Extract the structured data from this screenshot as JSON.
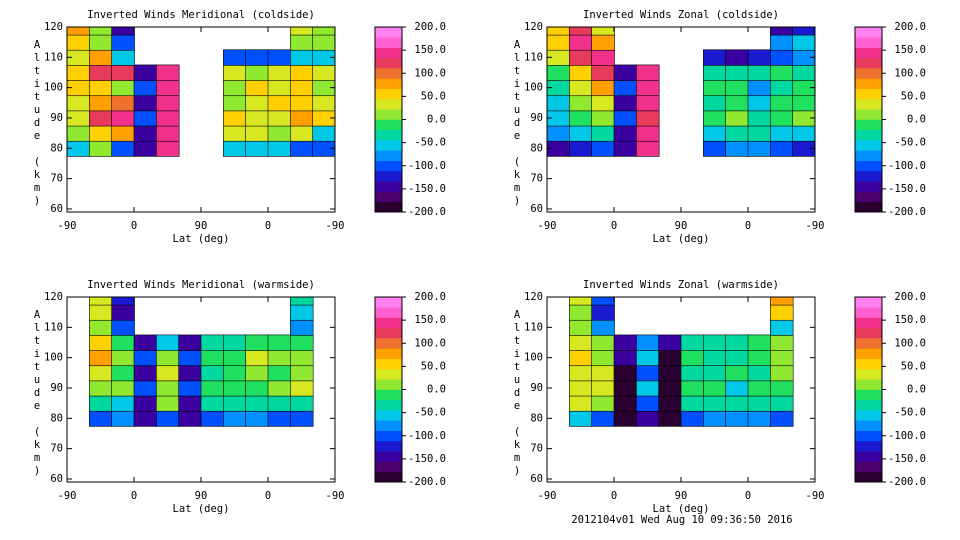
{
  "chart_data": [
    {
      "type": "heatmap",
      "title": "Inverted Winds Meridional (coldside)",
      "xlabel": "Lat (deg)",
      "ylabel": "Altitude (km)",
      "x": [
        15,
        45,
        75,
        105,
        135,
        165,
        195,
        225,
        255,
        285,
        315,
        345
      ],
      "y": [
        80,
        85,
        90,
        95,
        100,
        105,
        110,
        115,
        120
      ],
      "z": [
        [
          -50,
          0,
          -100,
          -150,
          150,
          null,
          null,
          -50,
          -50,
          -50,
          -100,
          -100
        ],
        [
          20,
          50,
          80,
          -150,
          150,
          null,
          null,
          30,
          40,
          20,
          30,
          -50
        ],
        [
          30,
          120,
          150,
          -100,
          150,
          null,
          null,
          50,
          30,
          40,
          80,
          50
        ],
        [
          40,
          80,
          100,
          -150,
          150,
          null,
          null,
          20,
          40,
          60,
          60,
          40
        ],
        [
          50,
          60,
          20,
          -100,
          150,
          null,
          null,
          10,
          50,
          40,
          50,
          20
        ],
        [
          60,
          130,
          120,
          -150,
          150,
          null,
          null,
          30,
          20,
          40,
          60,
          30
        ],
        [
          40,
          80,
          -50,
          null,
          null,
          null,
          null,
          -100,
          -100,
          -100,
          -50,
          -50
        ],
        [
          60,
          20,
          -100,
          null,
          null,
          null,
          null,
          null,
          null,
          null,
          20,
          0
        ],
        [
          80,
          0,
          -150,
          null,
          null,
          null,
          null,
          null,
          null,
          null,
          30,
          20
        ]
      ],
      "xlim": [
        0,
        360
      ],
      "ylim": [
        59,
        120
      ],
      "xticks": [
        {
          "value": 0,
          "label": "-90"
        },
        {
          "value": 90,
          "label": "0"
        },
        {
          "value": 180,
          "label": "90"
        },
        {
          "value": 270,
          "label": "0"
        },
        {
          "value": 360,
          "label": "-90"
        }
      ],
      "yticks": [
        60,
        70,
        80,
        90,
        100,
        110,
        120
      ],
      "colorbar": {
        "clim": [
          -200,
          200
        ],
        "ticks": [
          {
            "value": 200,
            "label": "200.0"
          },
          {
            "value": 150,
            "label": "150.0"
          },
          {
            "value": 100,
            "label": "100.0"
          },
          {
            "value": 50,
            "label": "50.0"
          },
          {
            "value": 0,
            "label": "0.0"
          },
          {
            "value": -50,
            "label": "-50.0"
          },
          {
            "value": -100,
            "label": "-100.0"
          },
          {
            "value": -150,
            "label": "-150.0"
          },
          {
            "value": -200,
            "label": "-200.0"
          }
        ],
        "colors": [
          "#2a0030",
          "#4b006e",
          "#3a00a0",
          "#1a1ad0",
          "#0050ff",
          "#0090ff",
          "#00c8e6",
          "#00d8a0",
          "#20e060",
          "#90e830",
          "#d8e820",
          "#ffd000",
          "#ffa000",
          "#f07030",
          "#e83a5a",
          "#f0308a",
          "#ff60d0",
          "#ff80f0"
        ]
      }
    },
    {
      "type": "heatmap",
      "title": "Inverted Winds Zonal (coldside)",
      "xlabel": "Lat (deg)",
      "ylabel": "Altitude (km)",
      "x": [
        15,
        45,
        75,
        105,
        135,
        165,
        195,
        225,
        255,
        285,
        315,
        345
      ],
      "y": [
        80,
        85,
        90,
        95,
        100,
        105,
        110,
        115,
        120
      ],
      "z": [
        [
          -150,
          -120,
          -100,
          -150,
          150,
          null,
          null,
          -100,
          -80,
          -80,
          -100,
          -120
        ],
        [
          -80,
          -60,
          -30,
          -150,
          150,
          null,
          null,
          -50,
          -30,
          -40,
          -60,
          -50
        ],
        [
          -50,
          -20,
          20,
          -100,
          120,
          null,
          null,
          -20,
          20,
          -40,
          -20,
          20
        ],
        [
          -60,
          0,
          40,
          -150,
          150,
          null,
          null,
          -30,
          -10,
          -60,
          -20,
          -10
        ],
        [
          -40,
          30,
          80,
          -100,
          150,
          null,
          null,
          -20,
          -10,
          -80,
          -30,
          -20
        ],
        [
          -20,
          60,
          130,
          -150,
          150,
          null,
          null,
          -40,
          -30,
          -40,
          -20,
          -30
        ],
        [
          30,
          120,
          150,
          null,
          null,
          null,
          null,
          -120,
          -150,
          -120,
          -100,
          -80
        ],
        [
          60,
          140,
          80,
          null,
          null,
          null,
          null,
          null,
          null,
          null,
          -80,
          -60
        ],
        [
          50,
          130,
          40,
          null,
          null,
          null,
          null,
          null,
          null,
          null,
          -150,
          -130
        ]
      ],
      "xlim": [
        0,
        360
      ],
      "ylim": [
        59,
        120
      ],
      "xticks": [
        {
          "value": 0,
          "label": "-90"
        },
        {
          "value": 90,
          "label": "0"
        },
        {
          "value": 180,
          "label": "90"
        },
        {
          "value": 270,
          "label": "0"
        },
        {
          "value": 360,
          "label": "-90"
        }
      ],
      "yticks": [
        60,
        70,
        80,
        90,
        100,
        110,
        120
      ],
      "colorbar": {
        "clim": [
          -200,
          200
        ],
        "ticks": [
          {
            "value": 200,
            "label": "200.0"
          },
          {
            "value": 150,
            "label": "150.0"
          },
          {
            "value": 100,
            "label": "100.0"
          },
          {
            "value": 50,
            "label": "50.0"
          },
          {
            "value": 0,
            "label": "0.0"
          },
          {
            "value": -50,
            "label": "-50.0"
          },
          {
            "value": -100,
            "label": "-100.0"
          },
          {
            "value": -150,
            "label": "-150.0"
          },
          {
            "value": -200,
            "label": "-200.0"
          }
        ],
        "colors": [
          "#2a0030",
          "#4b006e",
          "#3a00a0",
          "#1a1ad0",
          "#0050ff",
          "#0090ff",
          "#00c8e6",
          "#00d8a0",
          "#20e060",
          "#90e830",
          "#d8e820",
          "#ffd000",
          "#ffa000",
          "#f07030",
          "#e83a5a",
          "#f0308a",
          "#ff60d0",
          "#ff80f0"
        ]
      }
    },
    {
      "type": "heatmap",
      "title": "Inverted Winds Meridional (warmside)",
      "xlabel": "Lat (deg)",
      "ylabel": "Altitude (km)",
      "x": [
        15,
        45,
        75,
        105,
        135,
        165,
        195,
        225,
        255,
        285,
        315,
        345
      ],
      "y": [
        80,
        85,
        90,
        95,
        100,
        105,
        110,
        115,
        120
      ],
      "z": [
        [
          null,
          -100,
          -80,
          -150,
          -100,
          -150,
          -100,
          -80,
          -80,
          -100,
          -100,
          null
        ],
        [
          null,
          -30,
          -50,
          -150,
          0,
          -150,
          -40,
          -30,
          -40,
          -30,
          -40,
          null
        ],
        [
          null,
          20,
          0,
          -100,
          20,
          -100,
          -20,
          -10,
          -10,
          20,
          30,
          null
        ],
        [
          null,
          40,
          -20,
          -150,
          30,
          -150,
          -30,
          -20,
          10,
          -10,
          20,
          null
        ],
        [
          null,
          80,
          10,
          -100,
          0,
          -100,
          -10,
          -20,
          30,
          20,
          0,
          null
        ],
        [
          null,
          60,
          -10,
          -150,
          -50,
          -150,
          -30,
          -40,
          -10,
          -20,
          -20,
          null
        ],
        [
          null,
          20,
          -100,
          null,
          null,
          null,
          null,
          null,
          null,
          null,
          -80,
          null
        ],
        [
          null,
          40,
          -150,
          null,
          null,
          null,
          null,
          null,
          null,
          null,
          -60,
          null
        ],
        [
          null,
          30,
          -120,
          null,
          null,
          null,
          null,
          null,
          null,
          null,
          -30,
          null
        ]
      ],
      "xlim": [
        0,
        360
      ],
      "ylim": [
        59,
        120
      ],
      "xticks": [
        {
          "value": 0,
          "label": "-90"
        },
        {
          "value": 90,
          "label": "0"
        },
        {
          "value": 180,
          "label": "90"
        },
        {
          "value": 270,
          "label": "0"
        },
        {
          "value": 360,
          "label": "-90"
        }
      ],
      "yticks": [
        60,
        70,
        80,
        90,
        100,
        110,
        120
      ],
      "colorbar": {
        "clim": [
          -200,
          200
        ],
        "ticks": [
          {
            "value": 200,
            "label": "200.0"
          },
          {
            "value": 150,
            "label": "150.0"
          },
          {
            "value": 100,
            "label": "100.0"
          },
          {
            "value": 50,
            "label": "50.0"
          },
          {
            "value": 0,
            "label": "0.0"
          },
          {
            "value": -50,
            "label": "-50.0"
          },
          {
            "value": -100,
            "label": "-100.0"
          },
          {
            "value": -150,
            "label": "-150.0"
          },
          {
            "value": -200,
            "label": "-200.0"
          }
        ],
        "colors": [
          "#2a0030",
          "#4b006e",
          "#3a00a0",
          "#1a1ad0",
          "#0050ff",
          "#0090ff",
          "#00c8e6",
          "#00d8a0",
          "#20e060",
          "#90e830",
          "#d8e820",
          "#ffd000",
          "#ffa000",
          "#f07030",
          "#e83a5a",
          "#f0308a",
          "#ff60d0",
          "#ff80f0"
        ]
      }
    },
    {
      "type": "heatmap",
      "title": "Inverted Winds Zonal (warmside)",
      "xlabel": "Lat (deg)",
      "ylabel": "Altitude (km)",
      "x": [
        15,
        45,
        75,
        105,
        135,
        165,
        195,
        225,
        255,
        285,
        315,
        345
      ],
      "y": [
        80,
        85,
        90,
        95,
        100,
        105,
        110,
        115,
        120
      ],
      "z": [
        [
          null,
          -60,
          -100,
          -200,
          -150,
          -200,
          -100,
          -80,
          -80,
          -80,
          -100,
          null
        ],
        [
          null,
          30,
          20,
          -200,
          -100,
          -200,
          -40,
          -40,
          -30,
          -30,
          -30,
          null
        ],
        [
          null,
          40,
          40,
          -200,
          -50,
          -200,
          -20,
          -20,
          -60,
          -20,
          -20,
          null
        ],
        [
          null,
          30,
          30,
          -200,
          -100,
          -200,
          -30,
          -40,
          -10,
          -40,
          0,
          null
        ],
        [
          null,
          50,
          20,
          -150,
          -50,
          -200,
          -20,
          -30,
          -30,
          -20,
          10,
          null
        ],
        [
          null,
          40,
          0,
          -150,
          -80,
          -150,
          -40,
          -40,
          -30,
          -20,
          10,
          null
        ],
        [
          null,
          20,
          -80,
          null,
          null,
          null,
          null,
          null,
          null,
          null,
          -50,
          null
        ],
        [
          null,
          10,
          -120,
          null,
          null,
          null,
          null,
          null,
          null,
          null,
          60,
          null
        ],
        [
          null,
          30,
          -100,
          null,
          null,
          null,
          null,
          null,
          null,
          null,
          80,
          null
        ]
      ],
      "xlim": [
        0,
        360
      ],
      "ylim": [
        59,
        120
      ],
      "xticks": [
        {
          "value": 0,
          "label": "-90"
        },
        {
          "value": 90,
          "label": "0"
        },
        {
          "value": 180,
          "label": "90"
        },
        {
          "value": 270,
          "label": "0"
        },
        {
          "value": 360,
          "label": "-90"
        }
      ],
      "yticks": [
        60,
        70,
        80,
        90,
        100,
        110,
        120
      ],
      "colorbar": {
        "clim": [
          -200,
          200
        ],
        "ticks": [
          {
            "value": 200,
            "label": "200.0"
          },
          {
            "value": 150,
            "label": "150.0"
          },
          {
            "value": 100,
            "label": "100.0"
          },
          {
            "value": 50,
            "label": "50.0"
          },
          {
            "value": 0,
            "label": "0.0"
          },
          {
            "value": -50,
            "label": "-50.0"
          },
          {
            "value": -100,
            "label": "-100.0"
          },
          {
            "value": -150,
            "label": "-150.0"
          },
          {
            "value": -200,
            "label": "-200.0"
          }
        ],
        "colors": [
          "#2a0030",
          "#4b006e",
          "#3a00a0",
          "#1a1ad0",
          "#0050ff",
          "#0090ff",
          "#00c8e6",
          "#00d8a0",
          "#20e060",
          "#90e830",
          "#d8e820",
          "#ffd000",
          "#ffa000",
          "#f07030",
          "#e83a5a",
          "#f0308a",
          "#ff60d0",
          "#ff80f0"
        ]
      }
    }
  ],
  "footer": "2012104v01 Wed Aug 10 09:36:50 2016"
}
